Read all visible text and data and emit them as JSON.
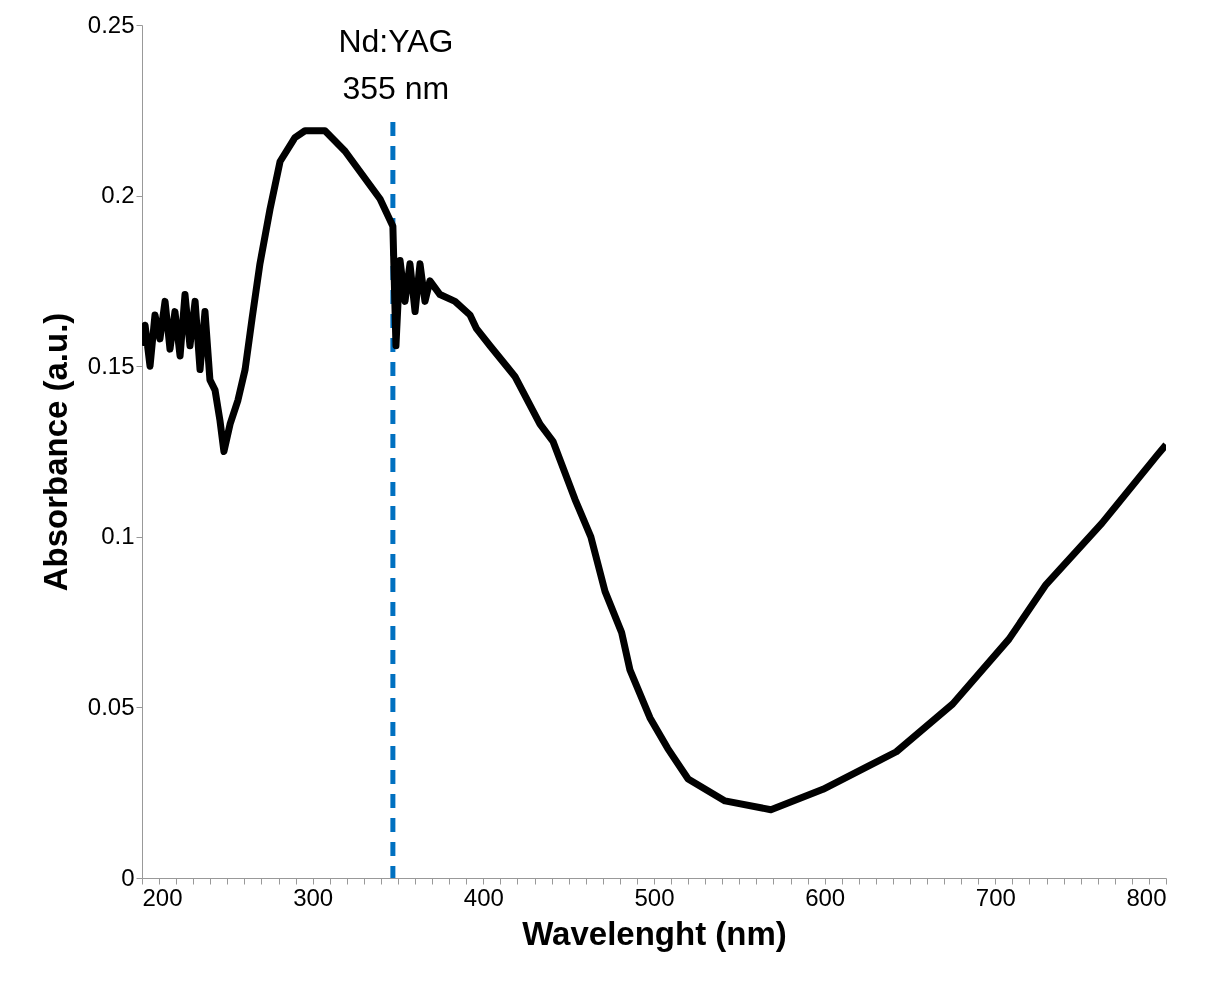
{
  "chart_data": {
    "type": "line",
    "xlabel": "Wavelenght (nm)",
    "ylabel": "Absorbance (a.u.)",
    "x": [
      200,
      201.8,
      204.7,
      207.6,
      210.5,
      213.5,
      216.4,
      219.3,
      222.3,
      225.2,
      228.1,
      231.1,
      234,
      236.9,
      239.8,
      242.8,
      245.7,
      248,
      251.6,
      256.2,
      260.4,
      264.5,
      269.1,
      275,
      280.9,
      289.6,
      295.5,
      307.2,
      319,
      330.7,
      339.5,
      347,
      348.8,
      351.2,
      354.1,
      357,
      360,
      362.9,
      365.8,
      368.7,
      374.6,
      383.4,
      392.2,
      396,
      403.9,
      418.5,
      433.2,
      440.8,
      453.7,
      463,
      471.3,
      481,
      485.9,
      497.6,
      508,
      520,
      541.6,
      568.5,
      599,
      642,
      675,
      708,
      729.7,
      762.5,
      795,
      800
    ],
    "series": [
      {
        "color": "#000000",
        "values": [
          0.156,
          0.162,
          0.15,
          0.165,
          0.158,
          0.169,
          0.155,
          0.166,
          0.153,
          0.171,
          0.156,
          0.169,
          0.149,
          0.166,
          0.146,
          0.143,
          0.134,
          0.125,
          0.133,
          0.14,
          0.149,
          0.164,
          0.18,
          0.196,
          0.21,
          0.217,
          0.219,
          0.219,
          0.213,
          0.205,
          0.199,
          0.191,
          0.156,
          0.181,
          0.169,
          0.18,
          0.166,
          0.18,
          0.169,
          0.175,
          0.171,
          0.169,
          0.165,
          0.161,
          0.156,
          0.147,
          0.133,
          0.128,
          0.111,
          0.1,
          0.084,
          0.072,
          0.061,
          0.047,
          0.038,
          0.029,
          0.0226,
          0.02,
          0.026,
          0.037,
          0.051,
          0.07,
          0.086,
          0.104,
          0.124,
          0.127
        ]
      }
    ],
    "xlim": [
      200,
      800
    ],
    "xticks": [
      200,
      {
        "value": 210,
        "label": null
      },
      {
        "value": 220,
        "label": null
      },
      {
        "value": 230,
        "label": null
      },
      {
        "value": 240,
        "label": null
      },
      {
        "value": 250,
        "label": null
      },
      {
        "value": 260,
        "label": null
      },
      {
        "value": 270,
        "label": null
      },
      {
        "value": 280,
        "label": null
      },
      {
        "value": 290,
        "label": null
      },
      300,
      {
        "value": 310,
        "label": null
      },
      {
        "value": 320,
        "label": null
      },
      {
        "value": 330,
        "label": null
      },
      {
        "value": 340,
        "label": null
      },
      {
        "value": 350,
        "label": null
      },
      {
        "value": 360,
        "label": null
      },
      {
        "value": 370,
        "label": null
      },
      {
        "value": 380,
        "label": null
      },
      {
        "value": 390,
        "label": null
      },
      400,
      {
        "value": 410,
        "label": null
      },
      {
        "value": 420,
        "label": null
      },
      {
        "value": 430,
        "label": null
      },
      {
        "value": 440,
        "label": null
      },
      {
        "value": 450,
        "label": null
      },
      {
        "value": 460,
        "label": null
      },
      {
        "value": 470,
        "label": null
      },
      {
        "value": 480,
        "label": null
      },
      {
        "value": 490,
        "label": null
      },
      500,
      {
        "value": 510,
        "label": null
      },
      {
        "value": 520,
        "label": null
      },
      {
        "value": 530,
        "label": null
      },
      {
        "value": 540,
        "label": null
      },
      {
        "value": 550,
        "label": null
      },
      {
        "value": 560,
        "label": null
      },
      {
        "value": 570,
        "label": null
      },
      {
        "value": 580,
        "label": null
      },
      {
        "value": 590,
        "label": null
      },
      600,
      {
        "value": 610,
        "label": null
      },
      {
        "value": 620,
        "label": null
      },
      {
        "value": 630,
        "label": null
      },
      {
        "value": 640,
        "label": null
      },
      {
        "value": 650,
        "label": null
      },
      {
        "value": 660,
        "label": null
      },
      {
        "value": 670,
        "label": null
      },
      {
        "value": 680,
        "label": null
      },
      {
        "value": 690,
        "label": null
      },
      700,
      {
        "value": 710,
        "label": null
      },
      {
        "value": 720,
        "label": null
      },
      {
        "value": 730,
        "label": null
      },
      {
        "value": 740,
        "label": null
      },
      {
        "value": 750,
        "label": null
      },
      {
        "value": 760,
        "label": null
      },
      {
        "value": 770,
        "label": null
      },
      {
        "value": 780,
        "label": null
      },
      {
        "value": 790,
        "label": null
      },
      800
    ],
    "ylim": [
      0,
      0.25
    ],
    "yticks": [
      0,
      0.05,
      0.1,
      0.15,
      0.2,
      0.25
    ],
    "ref_lines": [
      {
        "axis": "x",
        "value": 347,
        "label": "Nd:YAG\n355 nm",
        "color": "#0070c0",
        "line_style": "dashed"
      }
    ]
  }
}
